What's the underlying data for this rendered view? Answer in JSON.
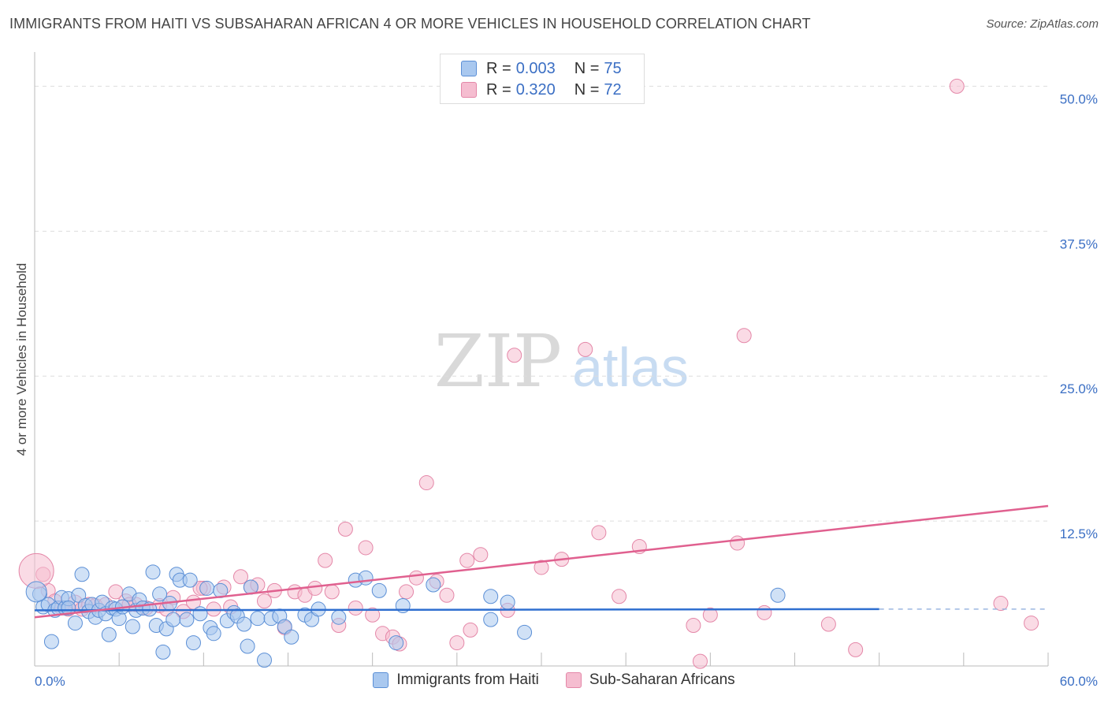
{
  "title": "IMMIGRANTS FROM HAITI VS SUBSAHARAN AFRICAN 4 OR MORE VEHICLES IN HOUSEHOLD CORRELATION CHART",
  "source": "Source: ZipAtlas.com",
  "watermark": {
    "zip": "ZIP",
    "atlas": "atlas"
  },
  "stats": [
    {
      "r_label": "R =",
      "r_value": "0.003",
      "n_label": "N =",
      "n_value": "75"
    },
    {
      "r_label": "R =",
      "r_value": "0.320",
      "n_label": "N =",
      "n_value": "72"
    }
  ],
  "colors": {
    "blue_fill": "#a9c8ef",
    "blue_stroke": "#5b8fd6",
    "blue_line": "#2f6fd0",
    "pink_fill": "#f5bdd0",
    "pink_stroke": "#e487a8",
    "pink_line": "#e0608f",
    "axis_label": "#3b6fc4",
    "grid": "#dddddd"
  },
  "chart_data": {
    "type": "scatter",
    "title": "IMMIGRANTS FROM HAITI VS SUBSAHARAN AFRICAN 4 OR MORE VEHICLES IN HOUSEHOLD CORRELATION CHART",
    "xlabel": "",
    "ylabel": "4 or more Vehicles in Household",
    "xlim": [
      0,
      60
    ],
    "ylim": [
      0,
      52
    ],
    "x_tick_labels": [
      "0.0%",
      "60.0%"
    ],
    "y_ticks": [
      12.5,
      25.0,
      37.5,
      50.0
    ],
    "y_tick_labels": [
      "12.5%",
      "25.0%",
      "37.5%",
      "50.0%"
    ],
    "grid": true,
    "legend_position": "bottom",
    "series": [
      {
        "name": "Immigrants from Haiti",
        "trend": {
          "x": [
            0,
            50
          ],
          "y": [
            4.8,
            4.9
          ],
          "dashed_to": 60
        },
        "points": [
          [
            0.3,
            6.2
          ],
          [
            0.5,
            5.1
          ],
          [
            0.8,
            5.3
          ],
          [
            1.0,
            2.1
          ],
          [
            1.2,
            4.8
          ],
          [
            1.4,
            5.0
          ],
          [
            1.6,
            5.9
          ],
          [
            1.8,
            5.0
          ],
          [
            2.0,
            5.8
          ],
          [
            2.4,
            3.7
          ],
          [
            2.6,
            6.1
          ],
          [
            2.8,
            7.9
          ],
          [
            3.0,
            5.2
          ],
          [
            3.2,
            4.7
          ],
          [
            3.4,
            5.3
          ],
          [
            3.6,
            4.2
          ],
          [
            3.8,
            4.8
          ],
          [
            4.0,
            5.5
          ],
          [
            4.2,
            4.5
          ],
          [
            4.4,
            2.7
          ],
          [
            4.6,
            5.0
          ],
          [
            4.8,
            4.9
          ],
          [
            5.0,
            4.1
          ],
          [
            5.2,
            5.1
          ],
          [
            5.6,
            6.2
          ],
          [
            5.8,
            3.4
          ],
          [
            6.0,
            4.8
          ],
          [
            6.2,
            5.7
          ],
          [
            6.4,
            5.0
          ],
          [
            6.8,
            4.9
          ],
          [
            7.0,
            8.1
          ],
          [
            7.2,
            3.5
          ],
          [
            7.4,
            6.2
          ],
          [
            7.6,
            1.2
          ],
          [
            7.8,
            3.2
          ],
          [
            8.0,
            5.4
          ],
          [
            8.2,
            4.0
          ],
          [
            8.4,
            7.9
          ],
          [
            8.6,
            7.4
          ],
          [
            9.0,
            4.0
          ],
          [
            9.2,
            7.4
          ],
          [
            9.4,
            2.0
          ],
          [
            9.8,
            4.5
          ],
          [
            10.2,
            6.7
          ],
          [
            10.4,
            3.3
          ],
          [
            10.6,
            2.8
          ],
          [
            11.0,
            6.5
          ],
          [
            11.4,
            3.9
          ],
          [
            11.8,
            4.6
          ],
          [
            12.0,
            4.3
          ],
          [
            12.4,
            3.6
          ],
          [
            12.8,
            6.8
          ],
          [
            12.6,
            1.7
          ],
          [
            13.2,
            4.1
          ],
          [
            13.6,
            0.5
          ],
          [
            14.0,
            4.1
          ],
          [
            14.5,
            4.3
          ],
          [
            14.8,
            3.4
          ],
          [
            15.2,
            2.5
          ],
          [
            16.0,
            4.4
          ],
          [
            16.4,
            4.0
          ],
          [
            16.8,
            4.9
          ],
          [
            18.0,
            4.2
          ],
          [
            19.0,
            7.4
          ],
          [
            19.6,
            7.6
          ],
          [
            20.4,
            6.5
          ],
          [
            21.8,
            5.2
          ],
          [
            21.4,
            2.0
          ],
          [
            23.6,
            7.0
          ],
          [
            27.0,
            4.0
          ],
          [
            27.0,
            6.0
          ],
          [
            28.0,
            5.5
          ],
          [
            29.0,
            2.9
          ],
          [
            44.0,
            6.1
          ],
          [
            2.0,
            5.0
          ]
        ]
      },
      {
        "name": "Sub-Saharan Africans",
        "trend": {
          "x": [
            0,
            60
          ],
          "y": [
            4.2,
            13.8
          ]
        },
        "points": [
          [
            0.5,
            7.9
          ],
          [
            0.8,
            6.5
          ],
          [
            1.2,
            5.6
          ],
          [
            1.6,
            5.0
          ],
          [
            2.0,
            4.9
          ],
          [
            2.4,
            5.5
          ],
          [
            2.8,
            4.9
          ],
          [
            3.2,
            5.3
          ],
          [
            3.6,
            5.2
          ],
          [
            4.2,
            5.3
          ],
          [
            4.8,
            6.4
          ],
          [
            5.4,
            5.6
          ],
          [
            6.0,
            5.3
          ],
          [
            6.6,
            5.0
          ],
          [
            7.4,
            5.2
          ],
          [
            7.8,
            4.9
          ],
          [
            8.2,
            5.9
          ],
          [
            8.8,
            4.7
          ],
          [
            9.4,
            5.5
          ],
          [
            10.0,
            6.7
          ],
          [
            10.6,
            4.9
          ],
          [
            11.2,
            6.8
          ],
          [
            11.6,
            5.1
          ],
          [
            12.2,
            7.7
          ],
          [
            12.8,
            6.8
          ],
          [
            13.2,
            7.0
          ],
          [
            13.6,
            5.6
          ],
          [
            14.2,
            6.5
          ],
          [
            14.8,
            3.3
          ],
          [
            15.4,
            6.4
          ],
          [
            16.0,
            6.1
          ],
          [
            16.6,
            6.7
          ],
          [
            17.2,
            9.1
          ],
          [
            17.6,
            6.4
          ],
          [
            18.0,
            3.5
          ],
          [
            18.4,
            11.8
          ],
          [
            19.0,
            5.0
          ],
          [
            19.6,
            10.2
          ],
          [
            20.0,
            4.4
          ],
          [
            20.6,
            2.8
          ],
          [
            21.2,
            2.5
          ],
          [
            21.6,
            1.9
          ],
          [
            22.0,
            6.4
          ],
          [
            22.6,
            7.6
          ],
          [
            23.2,
            15.8
          ],
          [
            23.8,
            7.3
          ],
          [
            24.4,
            6.1
          ],
          [
            25.0,
            2.0
          ],
          [
            25.6,
            9.1
          ],
          [
            25.8,
            3.1
          ],
          [
            26.4,
            9.6
          ],
          [
            28.0,
            4.8
          ],
          [
            28.4,
            26.8
          ],
          [
            30.0,
            8.5
          ],
          [
            31.2,
            9.2
          ],
          [
            32.6,
            27.3
          ],
          [
            33.4,
            11.5
          ],
          [
            34.6,
            6.0
          ],
          [
            35.8,
            10.3
          ],
          [
            39.0,
            3.5
          ],
          [
            39.4,
            0.4
          ],
          [
            40.0,
            4.4
          ],
          [
            41.6,
            10.6
          ],
          [
            42.0,
            28.5
          ],
          [
            43.2,
            4.6
          ],
          [
            47.0,
            3.6
          ],
          [
            48.6,
            1.4
          ],
          [
            54.6,
            50.0
          ],
          [
            57.2,
            5.4
          ],
          [
            59.0,
            3.7
          ],
          [
            5.6,
            5.3
          ],
          [
            9.8,
            6.7
          ]
        ]
      }
    ]
  }
}
